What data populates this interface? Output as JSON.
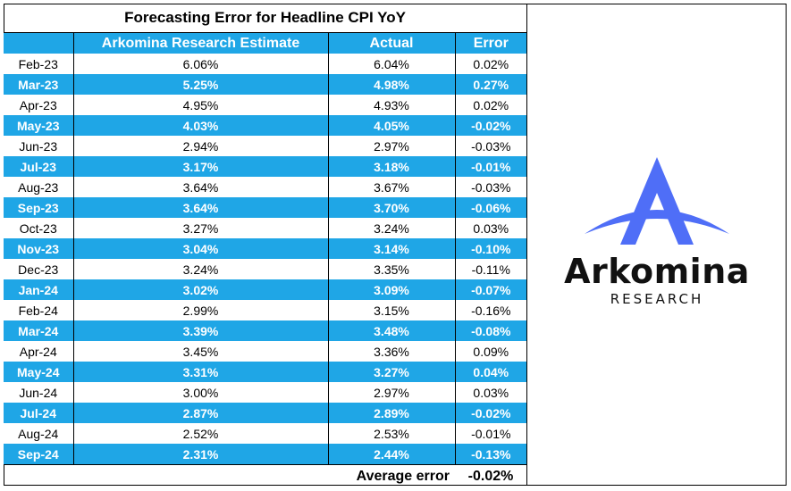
{
  "title": "Forecasting Error for Headline CPI YoY",
  "columns": {
    "estimate": "Arkomina Research Estimate",
    "actual": "Actual",
    "error": "Error"
  },
  "rows": [
    {
      "month": "Feb-23",
      "estimate": "6.06%",
      "actual": "6.04%",
      "error": "0.02%"
    },
    {
      "month": "Mar-23",
      "estimate": "5.25%",
      "actual": "4.98%",
      "error": "0.27%"
    },
    {
      "month": "Apr-23",
      "estimate": "4.95%",
      "actual": "4.93%",
      "error": "0.02%"
    },
    {
      "month": "May-23",
      "estimate": "4.03%",
      "actual": "4.05%",
      "error": "-0.02%"
    },
    {
      "month": "Jun-23",
      "estimate": "2.94%",
      "actual": "2.97%",
      "error": "-0.03%"
    },
    {
      "month": "Jul-23",
      "estimate": "3.17%",
      "actual": "3.18%",
      "error": "-0.01%"
    },
    {
      "month": "Aug-23",
      "estimate": "3.64%",
      "actual": "3.67%",
      "error": "-0.03%"
    },
    {
      "month": "Sep-23",
      "estimate": "3.64%",
      "actual": "3.70%",
      "error": "-0.06%"
    },
    {
      "month": "Oct-23",
      "estimate": "3.27%",
      "actual": "3.24%",
      "error": "0.03%"
    },
    {
      "month": "Nov-23",
      "estimate": "3.04%",
      "actual": "3.14%",
      "error": "-0.10%"
    },
    {
      "month": "Dec-23",
      "estimate": "3.24%",
      "actual": "3.35%",
      "error": "-0.11%"
    },
    {
      "month": "Jan-24",
      "estimate": "3.02%",
      "actual": "3.09%",
      "error": "-0.07%"
    },
    {
      "month": "Feb-24",
      "estimate": "2.99%",
      "actual": "3.15%",
      "error": "-0.16%"
    },
    {
      "month": "Mar-24",
      "estimate": "3.39%",
      "actual": "3.48%",
      "error": "-0.08%"
    },
    {
      "month": "Apr-24",
      "estimate": "3.45%",
      "actual": "3.36%",
      "error": "0.09%"
    },
    {
      "month": "May-24",
      "estimate": "3.31%",
      "actual": "3.27%",
      "error": "0.04%"
    },
    {
      "month": "Jun-24",
      "estimate": "3.00%",
      "actual": "2.97%",
      "error": "0.03%"
    },
    {
      "month": "Jul-24",
      "estimate": "2.87%",
      "actual": "2.89%",
      "error": "-0.02%"
    },
    {
      "month": "Aug-24",
      "estimate": "2.52%",
      "actual": "2.53%",
      "error": "-0.01%"
    },
    {
      "month": "Sep-24",
      "estimate": "2.31%",
      "actual": "2.44%",
      "error": "-0.13%"
    }
  ],
  "average": {
    "label": "Average error",
    "value": "-0.02%"
  },
  "logo": {
    "word": "Arkomina",
    "sub": "RESEARCH",
    "icon": "arkomina-a-swoosh-icon",
    "accent": "#4f6ef7"
  },
  "colors": {
    "band": "#1fa6e6"
  }
}
